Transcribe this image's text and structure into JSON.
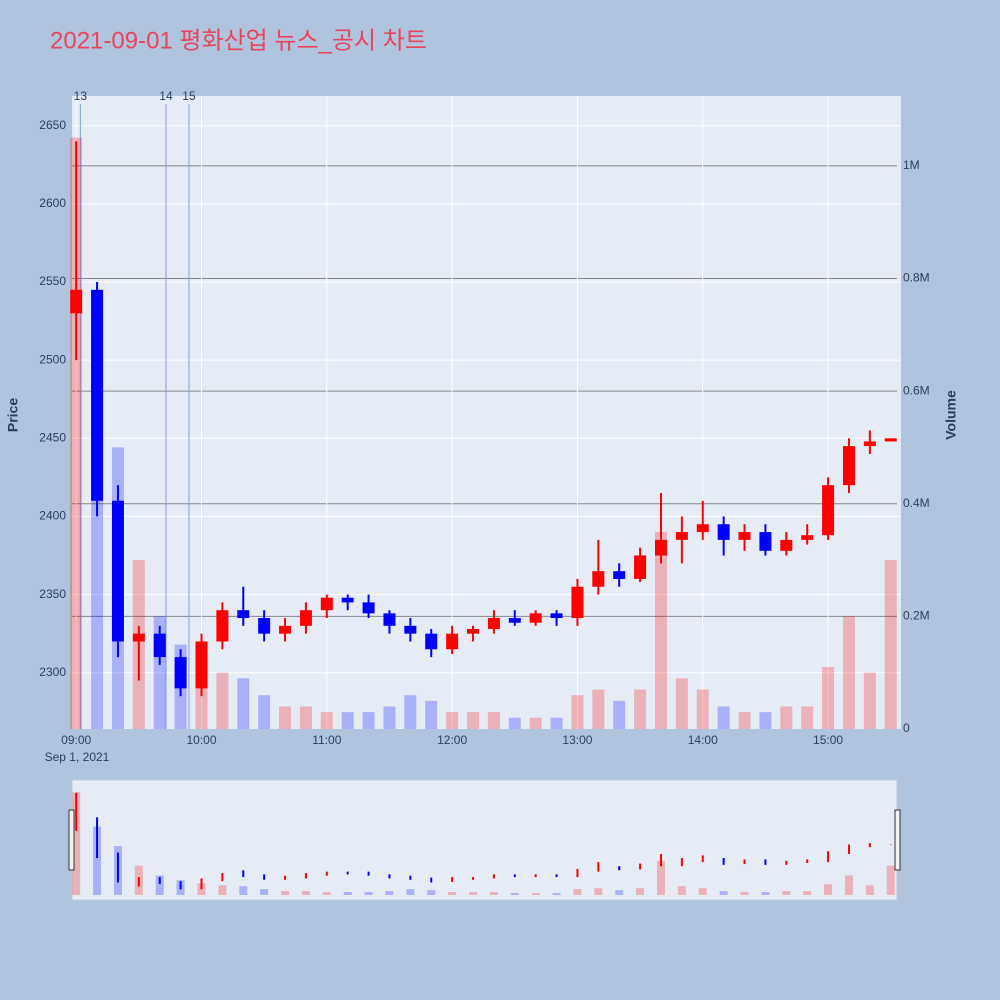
{
  "chart_data": {
    "type": "candlestick",
    "title": "2021-09-01 평화산업 뉴스_공시 차트",
    "y_title": "Price",
    "y2_title": "Volume",
    "x_date_label": "Sep 1, 2021",
    "x": [
      "09:00",
      "09:10",
      "09:20",
      "09:30",
      "09:40",
      "09:50",
      "10:00",
      "10:10",
      "10:20",
      "10:30",
      "10:40",
      "10:50",
      "11:00",
      "11:10",
      "11:20",
      "11:30",
      "11:40",
      "11:50",
      "12:00",
      "12:10",
      "12:20",
      "12:30",
      "12:40",
      "12:50",
      "13:00",
      "13:10",
      "13:20",
      "13:30",
      "13:40",
      "13:50",
      "14:00",
      "14:10",
      "14:20",
      "14:30",
      "14:40",
      "14:50",
      "15:00",
      "15:10",
      "15:20",
      "15:30"
    ],
    "open": [
      2530,
      2545,
      2410,
      2320,
      2325,
      2310,
      2290,
      2320,
      2340,
      2335,
      2325,
      2330,
      2340,
      2348,
      2345,
      2338,
      2330,
      2325,
      2315,
      2325,
      2328,
      2335,
      2332,
      2338,
      2335,
      2355,
      2365,
      2360,
      2375,
      2385,
      2390,
      2395,
      2385,
      2390,
      2378,
      2385,
      2388,
      2420,
      2445,
      2448
    ],
    "high": [
      2640,
      2550,
      2420,
      2330,
      2330,
      2315,
      2325,
      2345,
      2355,
      2340,
      2335,
      2345,
      2350,
      2350,
      2350,
      2340,
      2335,
      2328,
      2330,
      2330,
      2340,
      2340,
      2340,
      2340,
      2360,
      2385,
      2370,
      2380,
      2415,
      2400,
      2410,
      2400,
      2395,
      2395,
      2390,
      2395,
      2425,
      2450,
      2455,
      2450
    ],
    "low": [
      2500,
      2400,
      2310,
      2295,
      2305,
      2285,
      2285,
      2315,
      2330,
      2320,
      2320,
      2325,
      2335,
      2340,
      2335,
      2325,
      2320,
      2310,
      2312,
      2320,
      2325,
      2330,
      2330,
      2330,
      2330,
      2350,
      2355,
      2358,
      2370,
      2370,
      2385,
      2375,
      2378,
      2375,
      2375,
      2382,
      2385,
      2415,
      2440,
      2448
    ],
    "close": [
      2545,
      2410,
      2320,
      2325,
      2310,
      2290,
      2320,
      2340,
      2335,
      2325,
      2330,
      2340,
      2348,
      2345,
      2338,
      2330,
      2325,
      2315,
      2325,
      2328,
      2335,
      2332,
      2338,
      2335,
      2355,
      2365,
      2360,
      2375,
      2385,
      2390,
      2395,
      2385,
      2390,
      2378,
      2385,
      2388,
      2420,
      2445,
      2448,
      2450
    ],
    "volume": [
      1050000,
      700000,
      500000,
      300000,
      200000,
      150000,
      120000,
      100000,
      90000,
      60000,
      40000,
      40000,
      30000,
      30000,
      30000,
      40000,
      60000,
      50000,
      30000,
      30000,
      30000,
      20000,
      20000,
      20000,
      60000,
      70000,
      50000,
      70000,
      350000,
      90000,
      70000,
      40000,
      30000,
      30000,
      40000,
      40000,
      110000,
      200000,
      100000,
      300000
    ],
    "increasing_color": "#ff0000",
    "decreasing_color": "#0000ff",
    "ylim": [
      2264,
      2669
    ],
    "yticks": [
      2300,
      2350,
      2400,
      2450,
      2500,
      2550,
      2600,
      2650
    ],
    "y2lim": [
      0,
      1124000
    ],
    "y2ticks": [
      0,
      {
        "value": 200000,
        "label": "0.2M"
      },
      {
        "value": 400000,
        "label": "0.4M"
      },
      {
        "value": 600000,
        "label": "0.6M"
      },
      {
        "value": 800000,
        "label": "0.8M"
      },
      {
        "value": 1000000,
        "label": "1M"
      }
    ],
    "xlim": [
      "08:58",
      "15:33"
    ],
    "xticks": [
      "09:00",
      "10:00",
      "11:00",
      "12:00",
      "13:00",
      "14:00",
      "15:00"
    ],
    "news": [
      {
        "label": "13",
        "time": "09:02"
      },
      {
        "label": "14",
        "time": "09:43"
      },
      {
        "label": "15",
        "time": "09:54"
      }
    ],
    "grid": true
  }
}
